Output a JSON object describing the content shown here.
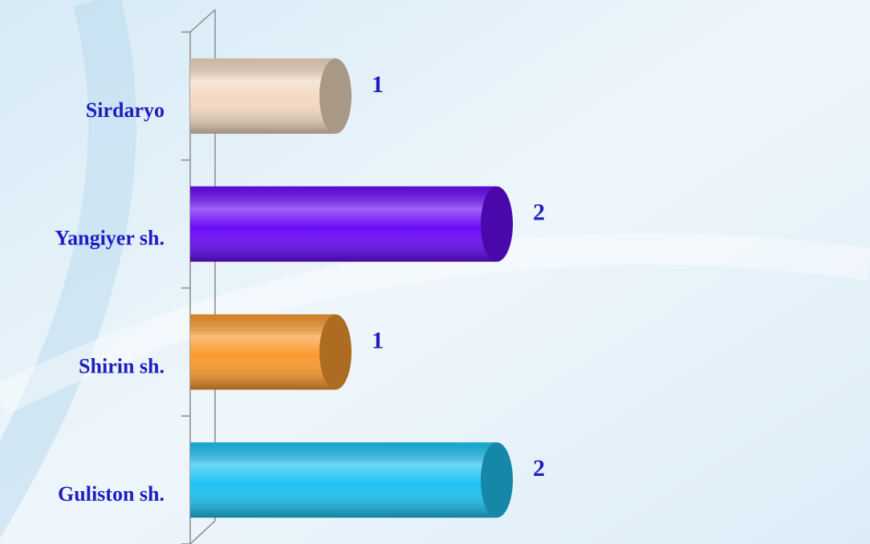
{
  "chart_data": {
    "type": "bar",
    "orientation": "horizontal",
    "categories": [
      "Sirdaryo",
      "Yangiyer sh.",
      "Shirin sh.",
      "Guliston sh."
    ],
    "values": [
      1,
      2,
      1,
      2
    ],
    "colors": [
      "#f3d9c1",
      "#6a0cf5",
      "#f99a30",
      "#1ec2f2"
    ]
  }
}
